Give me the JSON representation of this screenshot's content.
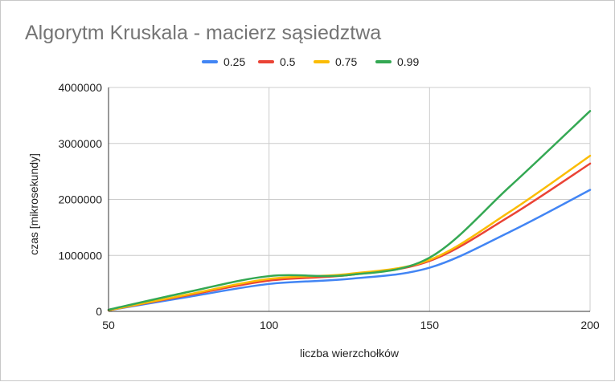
{
  "chart_data": {
    "type": "line",
    "title": "Algorytm Kruskala - macierz sąsiedztwa",
    "xlabel": "liczba wierzchołków",
    "ylabel": "czas [mikrosekundy]",
    "xlim": [
      50,
      200
    ],
    "ylim": [
      0,
      4000000
    ],
    "x_ticks": [
      "50",
      "100",
      "150",
      "200"
    ],
    "y_ticks": [
      "0",
      "1000000",
      "2000000",
      "3000000",
      "4000000"
    ],
    "legend_position": "top",
    "grid": true,
    "x": [
      50,
      75,
      100,
      125,
      150,
      175,
      200
    ],
    "series": [
      {
        "name": "0.25",
        "color": "#4285f4",
        "values": [
          20000,
          260000,
          490000,
          580000,
          780000,
          1420000,
          2170000
        ]
      },
      {
        "name": "0.5",
        "color": "#ea4335",
        "values": [
          20000,
          290000,
          550000,
          650000,
          900000,
          1700000,
          2640000
        ]
      },
      {
        "name": "0.75",
        "color": "#fbbc04",
        "values": [
          20000,
          305000,
          580000,
          670000,
          920000,
          1780000,
          2780000
        ]
      },
      {
        "name": "0.99",
        "color": "#34a853",
        "values": [
          30000,
          350000,
          630000,
          650000,
          960000,
          2230000,
          3580000
        ]
      }
    ]
  }
}
